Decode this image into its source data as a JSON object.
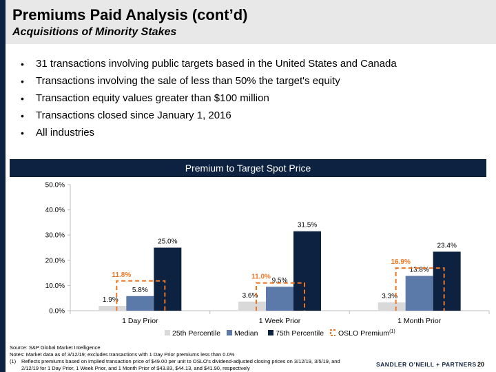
{
  "header": {
    "title": "Premiums Paid Analysis (cont’d)",
    "subtitle": "Acquisitions of Minority Stakes"
  },
  "bullets": [
    "31 transactions involving public targets based in the United States and Canada",
    "Transactions involving the sale of less than 50% the target's equity",
    "Transaction equity values greater than $100 million",
    "Transactions closed since January 1, 2016",
    "All industries"
  ],
  "bullet_glyph": "•",
  "chart_banner": "Premium to Target Spot Price",
  "colors": {
    "navy": "#0d2240",
    "median": "#5b7aaa",
    "p25": "#d9d9d9",
    "oslo": "#ee7623"
  },
  "chart_data": {
    "type": "bar",
    "title": "Premium to Target Spot Price",
    "categories": [
      "1 Day Prior",
      "1 Week Prior",
      "1 Month Prior"
    ],
    "series": [
      {
        "name": "25th Percentile",
        "values": [
          1.9,
          3.6,
          3.3
        ],
        "labels": [
          "1.9%",
          "3.6%",
          "3.3%"
        ]
      },
      {
        "name": "Median",
        "values": [
          5.8,
          9.5,
          13.8
        ],
        "labels": [
          "5.8%",
          "9.5%",
          "13.8%"
        ]
      },
      {
        "name": "75th Percentile",
        "values": [
          25.0,
          31.5,
          23.4
        ],
        "labels": [
          "25.0%",
          "31.5%",
          "23.4%"
        ]
      }
    ],
    "oslo": {
      "name": "OSLO Premium",
      "superscript": "(1)",
      "values": [
        11.8,
        11.0,
        16.9
      ],
      "labels": [
        "11.8%",
        "11.0%",
        "16.9%"
      ]
    },
    "ylim": [
      0,
      50
    ],
    "yticks": [
      0,
      10,
      20,
      30,
      40,
      50
    ],
    "ytick_labels": [
      "0.0%",
      "10.0%",
      "20.0%",
      "30.0%",
      "40.0%",
      "50.0%"
    ],
    "xlabel": "",
    "ylabel": "",
    "legend": "bottom",
    "grid": false
  },
  "footer": {
    "source": "Source: S&P Global Market Intelligence",
    "notes": "Notes: Market data as of 3/12/19; excludes transactions with 1 Day Prior premiums less than 0.0%",
    "footnote_num": "(1)",
    "footnote_line1": "Reflects premiums based on implied transaction price of $49.00 per unit to OSLO’s dividend-adjusted closing prices on 3/12/19, 3/5/19, and",
    "footnote_line2": "2/12/19 for 1 Day Prior, 1 Week Prior, and 1 Month Prior of $43.83, $44.13, and $41.90, respectively"
  },
  "brand": "SANDLER O’NEILL + PARTNERS",
  "page_number": "20"
}
